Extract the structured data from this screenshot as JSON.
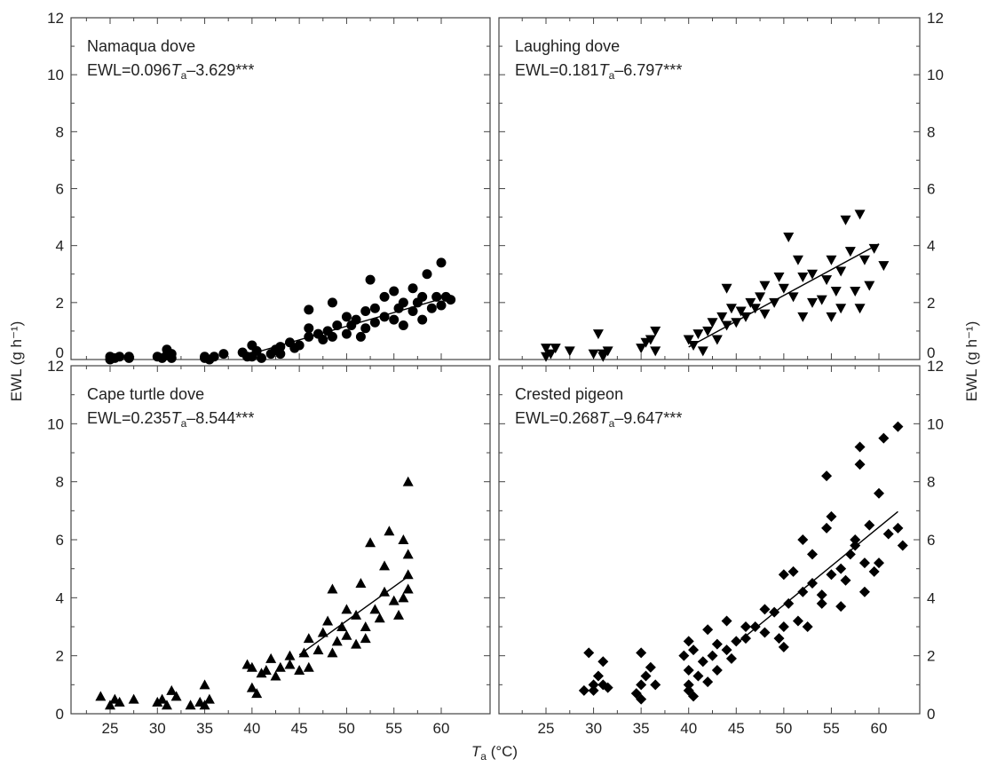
{
  "figure": {
    "y_axis_title": "EWL (g h⁻¹)",
    "x_axis_title_var": "T",
    "x_axis_title_sub": "a",
    "x_axis_title_unit": " (°C)"
  },
  "chart_data": [
    {
      "type": "scatter",
      "title": "Namaqua dove",
      "equation": {
        "prefix": "EWL=0.096",
        "var": "T",
        "sub": "a",
        "suffix": "–3.629***"
      },
      "marker": "circle",
      "xlim": [
        20,
        65
      ],
      "ylim": [
        0,
        12
      ],
      "xticks": [
        25,
        30,
        35,
        40,
        45,
        50,
        55,
        60
      ],
      "yticks": [
        0,
        2,
        4,
        6,
        8,
        10,
        12
      ],
      "xtick_labels": [],
      "ytick_labels": [
        "0",
        "2",
        "4",
        "6",
        "8",
        "10",
        "12"
      ],
      "fit_line": {
        "x": [
          40,
          60
        ],
        "y": [
          0.21,
          2.13
        ]
      },
      "points": [
        [
          25,
          0.1
        ],
        [
          25,
          0
        ],
        [
          25.5,
          0.05
        ],
        [
          26,
          0.1
        ],
        [
          27,
          0.05
        ],
        [
          27,
          0.1
        ],
        [
          30,
          0.1
        ],
        [
          30.5,
          0.05
        ],
        [
          31,
          0.15
        ],
        [
          31,
          0.35
        ],
        [
          31.5,
          0.05
        ],
        [
          31.5,
          0.2
        ],
        [
          35,
          0.1
        ],
        [
          35,
          0.05
        ],
        [
          35.5,
          0
        ],
        [
          36,
          0.1
        ],
        [
          37,
          0.2
        ],
        [
          39,
          0.25
        ],
        [
          39.5,
          0.1
        ],
        [
          40,
          0.5
        ],
        [
          40,
          0.1
        ],
        [
          40.5,
          0.3
        ],
        [
          41,
          0.05
        ],
        [
          42,
          0.2
        ],
        [
          42.5,
          0.35
        ],
        [
          43,
          0.45
        ],
        [
          43,
          0.2
        ],
        [
          44,
          0.6
        ],
        [
          44.5,
          0.4
        ],
        [
          45,
          0.5
        ],
        [
          46,
          0.8
        ],
        [
          46,
          1.1
        ],
        [
          46,
          1.75
        ],
        [
          47,
          0.9
        ],
        [
          47.5,
          0.7
        ],
        [
          48,
          1.0
        ],
        [
          48.5,
          2.0
        ],
        [
          48.5,
          0.8
        ],
        [
          49,
          1.2
        ],
        [
          50,
          1.5
        ],
        [
          50,
          0.9
        ],
        [
          50.5,
          1.2
        ],
        [
          51,
          1.4
        ],
        [
          51.5,
          0.8
        ],
        [
          52,
          1.7
        ],
        [
          52,
          1.1
        ],
        [
          52.5,
          2.8
        ],
        [
          53,
          1.3
        ],
        [
          53,
          1.8
        ],
        [
          54,
          2.2
        ],
        [
          54,
          1.5
        ],
        [
          55,
          1.4
        ],
        [
          55,
          2.4
        ],
        [
          55.5,
          1.8
        ],
        [
          56,
          2.0
        ],
        [
          56,
          1.2
        ],
        [
          57,
          2.5
        ],
        [
          57,
          1.7
        ],
        [
          57.5,
          2.0
        ],
        [
          58,
          1.4
        ],
        [
          58,
          2.2
        ],
        [
          58.5,
          3.0
        ],
        [
          59,
          1.8
        ],
        [
          59.5,
          2.2
        ],
        [
          60,
          3.4
        ],
        [
          60,
          1.9
        ],
        [
          60.5,
          2.2
        ],
        [
          61,
          2.1
        ]
      ]
    },
    {
      "type": "scatter",
      "title": "Laughing dove",
      "equation": {
        "prefix": "EWL=0.181",
        "var": "T",
        "sub": "a",
        "suffix": "–6.797***"
      },
      "marker": "triangle-down",
      "xlim": [
        20,
        65
      ],
      "ylim": [
        0,
        12
      ],
      "xticks": [
        25,
        30,
        35,
        40,
        45,
        50,
        55,
        60
      ],
      "yticks": [
        0,
        2,
        4,
        6,
        8,
        10,
        12
      ],
      "xtick_labels": [],
      "ytick_labels": [
        "0",
        "2",
        "4",
        "6",
        "8",
        "10",
        "12"
      ],
      "fit_line": {
        "x": [
          40,
          60
        ],
        "y": [
          0.44,
          4.06
        ]
      },
      "points": [
        [
          25,
          0.4
        ],
        [
          25,
          0.1
        ],
        [
          25.5,
          0.2
        ],
        [
          26,
          0.4
        ],
        [
          27.5,
          0.3
        ],
        [
          30,
          0.2
        ],
        [
          30.5,
          0.9
        ],
        [
          31,
          0.2
        ],
        [
          31,
          0.1
        ],
        [
          31.5,
          0.3
        ],
        [
          35,
          0.4
        ],
        [
          35.5,
          0.6
        ],
        [
          36,
          0.7
        ],
        [
          36.5,
          0.3
        ],
        [
          36.5,
          1.0
        ],
        [
          40,
          0.7
        ],
        [
          40.5,
          0.5
        ],
        [
          41,
          0.9
        ],
        [
          41.5,
          0.3
        ],
        [
          42,
          1.0
        ],
        [
          42.5,
          1.3
        ],
        [
          43,
          0.7
        ],
        [
          43.5,
          1.5
        ],
        [
          44,
          1.2
        ],
        [
          44,
          2.5
        ],
        [
          44.5,
          1.8
        ],
        [
          45,
          1.3
        ],
        [
          45.5,
          1.7
        ],
        [
          46,
          1.5
        ],
        [
          46.5,
          2.0
        ],
        [
          47,
          1.8
        ],
        [
          47.5,
          2.2
        ],
        [
          48,
          1.6
        ],
        [
          48,
          2.6
        ],
        [
          49,
          2.0
        ],
        [
          49.5,
          2.9
        ],
        [
          50,
          2.5
        ],
        [
          50.5,
          4.3
        ],
        [
          51,
          2.2
        ],
        [
          51.5,
          3.5
        ],
        [
          52,
          2.9
        ],
        [
          52,
          1.5
        ],
        [
          53,
          3.0
        ],
        [
          53,
          2.0
        ],
        [
          54,
          2.1
        ],
        [
          54.5,
          2.8
        ],
        [
          55,
          3.5
        ],
        [
          55,
          1.5
        ],
        [
          55.5,
          2.4
        ],
        [
          56,
          3.1
        ],
        [
          56,
          1.8
        ],
        [
          56.5,
          4.9
        ],
        [
          57,
          3.8
        ],
        [
          57.5,
          2.4
        ],
        [
          58,
          5.1
        ],
        [
          58,
          1.8
        ],
        [
          58.5,
          3.5
        ],
        [
          59,
          2.6
        ],
        [
          59.5,
          3.9
        ],
        [
          60.5,
          3.3
        ]
      ]
    },
    {
      "type": "scatter",
      "title": "Cape turtle dove",
      "equation": {
        "prefix": "EWL=0.235",
        "var": "T",
        "sub": "a",
        "suffix": "–8.544***"
      },
      "marker": "triangle-up",
      "xlim": [
        20,
        65
      ],
      "ylim": [
        0,
        12
      ],
      "xticks": [
        25,
        30,
        35,
        40,
        45,
        50,
        55,
        60
      ],
      "yticks": [
        0,
        2,
        4,
        6,
        8,
        10,
        12
      ],
      "xtick_labels": [
        "25",
        "30",
        "35",
        "40",
        "45",
        "50",
        "55",
        "60"
      ],
      "ytick_labels": [
        "0",
        "2",
        "4",
        "6",
        "8",
        "10",
        "12"
      ],
      "fit_line": {
        "x": [
          45,
          56.5
        ],
        "y": [
          2.03,
          4.73
        ]
      },
      "points": [
        [
          24,
          0.6
        ],
        [
          25,
          0.3
        ],
        [
          25.5,
          0.5
        ],
        [
          26,
          0.4
        ],
        [
          27.5,
          0.5
        ],
        [
          30,
          0.4
        ],
        [
          30.5,
          0.5
        ],
        [
          31,
          0.3
        ],
        [
          31.5,
          0.8
        ],
        [
          32,
          0.6
        ],
        [
          33.5,
          0.3
        ],
        [
          34.5,
          0.4
        ],
        [
          35,
          1.0
        ],
        [
          35,
          0.3
        ],
        [
          35.5,
          0.5
        ],
        [
          39.5,
          1.7
        ],
        [
          40,
          0.9
        ],
        [
          40,
          1.6
        ],
        [
          40.5,
          0.7
        ],
        [
          41,
          1.4
        ],
        [
          41.5,
          1.5
        ],
        [
          42,
          1.9
        ],
        [
          42.5,
          1.3
        ],
        [
          43,
          1.6
        ],
        [
          44,
          2.0
        ],
        [
          44,
          1.7
        ],
        [
          45,
          1.5
        ],
        [
          45.5,
          2.1
        ],
        [
          46,
          1.6
        ],
        [
          46,
          2.6
        ],
        [
          47,
          2.2
        ],
        [
          47.5,
          2.8
        ],
        [
          48,
          3.2
        ],
        [
          48.5,
          2.1
        ],
        [
          48.5,
          4.3
        ],
        [
          49,
          2.5
        ],
        [
          49.5,
          3.0
        ],
        [
          50,
          3.6
        ],
        [
          50,
          2.7
        ],
        [
          51,
          2.4
        ],
        [
          51,
          3.4
        ],
        [
          51.5,
          4.5
        ],
        [
          52,
          3.0
        ],
        [
          52,
          2.6
        ],
        [
          52.5,
          5.9
        ],
        [
          53,
          3.6
        ],
        [
          53.5,
          3.3
        ],
        [
          54,
          4.2
        ],
        [
          54,
          5.1
        ],
        [
          54.5,
          6.3
        ],
        [
          55,
          3.9
        ],
        [
          55.5,
          3.4
        ],
        [
          56,
          6.0
        ],
        [
          56,
          4.0
        ],
        [
          56.5,
          5.5
        ],
        [
          56.5,
          4.8
        ],
        [
          56.5,
          8.0
        ],
        [
          56.5,
          4.3
        ]
      ]
    },
    {
      "type": "scatter",
      "title": "Crested pigeon",
      "equation": {
        "prefix": "EWL=0.268",
        "var": "T",
        "sub": "a",
        "suffix": "–9.647***"
      },
      "marker": "diamond",
      "xlim": [
        20,
        65
      ],
      "ylim": [
        0,
        12
      ],
      "xticks": [
        25,
        30,
        35,
        40,
        45,
        50,
        55,
        60
      ],
      "yticks": [
        0,
        2,
        4,
        6,
        8,
        10,
        12
      ],
      "xtick_labels": [
        "25",
        "30",
        "35",
        "40",
        "45",
        "50",
        "55",
        "60"
      ],
      "ytick_labels": [
        "0",
        "2",
        "4",
        "6",
        "8",
        "10",
        "12"
      ],
      "fit_line": {
        "x": [
          45,
          62
        ],
        "y": [
          2.41,
          6.97
        ]
      },
      "points": [
        [
          29,
          0.8
        ],
        [
          29.5,
          2.1
        ],
        [
          30,
          1.0
        ],
        [
          30,
          0.8
        ],
        [
          30.5,
          1.3
        ],
        [
          31,
          1.8
        ],
        [
          31,
          1.0
        ],
        [
          31.5,
          0.9
        ],
        [
          34.5,
          0.7
        ],
        [
          35,
          2.1
        ],
        [
          35,
          1.0
        ],
        [
          35,
          0.5
        ],
        [
          35.5,
          1.3
        ],
        [
          36,
          1.6
        ],
        [
          36.5,
          1.0
        ],
        [
          39.5,
          2.0
        ],
        [
          40,
          1.5
        ],
        [
          40,
          0.8
        ],
        [
          40,
          2.5
        ],
        [
          40,
          1.0
        ],
        [
          40.5,
          0.6
        ],
        [
          40.5,
          2.2
        ],
        [
          41,
          1.3
        ],
        [
          41.5,
          1.8
        ],
        [
          42,
          2.9
        ],
        [
          42,
          1.1
        ],
        [
          42.5,
          2.0
        ],
        [
          43,
          1.5
        ],
        [
          43,
          2.4
        ],
        [
          44,
          2.2
        ],
        [
          44,
          3.2
        ],
        [
          44.5,
          1.9
        ],
        [
          45,
          2.5
        ],
        [
          46,
          2.6
        ],
        [
          46,
          3.0
        ],
        [
          47,
          3.0
        ],
        [
          48,
          3.6
        ],
        [
          48,
          2.8
        ],
        [
          49,
          3.5
        ],
        [
          49.5,
          2.6
        ],
        [
          50,
          3.0
        ],
        [
          50,
          4.8
        ],
        [
          50,
          2.3
        ],
        [
          50.5,
          3.8
        ],
        [
          51,
          4.9
        ],
        [
          51.5,
          3.2
        ],
        [
          52,
          4.2
        ],
        [
          52,
          6.0
        ],
        [
          52.5,
          3.0
        ],
        [
          53,
          4.5
        ],
        [
          53,
          5.5
        ],
        [
          54,
          4.1
        ],
        [
          54,
          3.8
        ],
        [
          54.5,
          8.2
        ],
        [
          54.5,
          6.4
        ],
        [
          55,
          4.8
        ],
        [
          55,
          6.8
        ],
        [
          56,
          3.7
        ],
        [
          56,
          5.0
        ],
        [
          56.5,
          4.6
        ],
        [
          57,
          5.5
        ],
        [
          57.5,
          5.8
        ],
        [
          57.5,
          6.0
        ],
        [
          58,
          8.6
        ],
        [
          58,
          9.2
        ],
        [
          58.5,
          4.2
        ],
        [
          58.5,
          5.2
        ],
        [
          59,
          6.5
        ],
        [
          59.5,
          4.9
        ],
        [
          60,
          7.6
        ],
        [
          60,
          5.2
        ],
        [
          60.5,
          9.5
        ],
        [
          61,
          6.2
        ],
        [
          62,
          9.9
        ],
        [
          62,
          6.4
        ],
        [
          62.5,
          5.8
        ]
      ]
    }
  ]
}
